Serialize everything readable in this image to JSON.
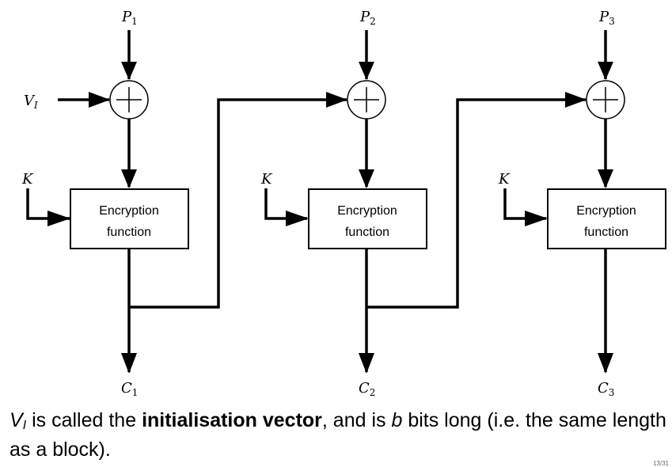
{
  "stages": [
    {
      "plaintext": {
        "sym": "P",
        "sub": "1"
      },
      "key": "K",
      "box": {
        "line1": "Encryption",
        "line2": "function"
      },
      "ciphertext": {
        "sym": "C",
        "sub": "1"
      }
    },
    {
      "plaintext": {
        "sym": "P",
        "sub": "2"
      },
      "key": "K",
      "box": {
        "line1": "Encryption",
        "line2": "function"
      },
      "ciphertext": {
        "sym": "C",
        "sub": "2"
      }
    },
    {
      "plaintext": {
        "sym": "P",
        "sub": "3"
      },
      "key": "K",
      "box": {
        "line1": "Encryption",
        "line2": "function"
      },
      "ciphertext": {
        "sym": "C",
        "sub": "3"
      }
    }
  ],
  "iv": {
    "sym": "V",
    "sub": "I"
  },
  "caption": {
    "iv_sym": "V",
    "iv_sub": "I",
    "part1": " is called the ",
    "bold": "initialisation vector",
    "part2": ", and is ",
    "b": "b",
    "part3": " bits long (i.e. the same length as a block)."
  },
  "page_number": "13/31"
}
